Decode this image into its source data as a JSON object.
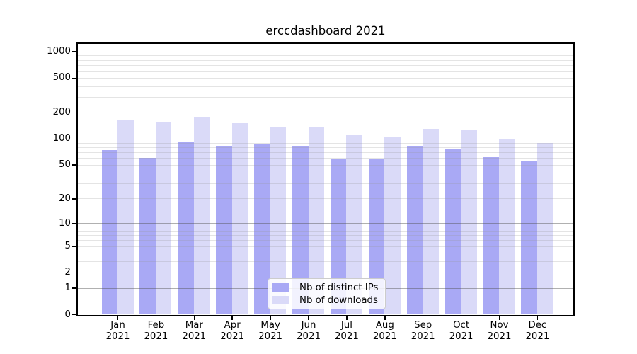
{
  "chart_data": {
    "type": "bar",
    "title": "erccdashboard 2021",
    "categories": [
      "Jan 2021",
      "Feb 2021",
      "Mar 2021",
      "Apr 2021",
      "May 2021",
      "Jun 2021",
      "Jul 2021",
      "Aug 2021",
      "Sep 2021",
      "Oct 2021",
      "Nov 2021",
      "Dec 2021"
    ],
    "series": [
      {
        "name": "Nb of distinct IPs",
        "color": "#a9a9f5",
        "values": [
          75,
          61,
          94,
          84,
          88,
          83,
          60,
          60,
          84,
          76,
          62,
          55
        ]
      },
      {
        "name": "Nb of downloads",
        "color": "#dadaf8",
        "values": [
          165,
          158,
          181,
          153,
          136,
          137,
          110,
          106,
          130,
          127,
          100,
          90
        ]
      }
    ],
    "xlabel": "",
    "ylabel": "",
    "yscale": "log1p",
    "ylim": [
      0,
      1230
    ],
    "y_ticks": [
      0,
      1,
      2,
      5,
      10,
      20,
      50,
      100,
      200,
      500,
      1000
    ],
    "y_tick_labels": [
      "0",
      "1",
      "2",
      "5",
      "10",
      "20",
      "50",
      "100",
      "200",
      "500",
      "1000"
    ],
    "grid": "major-and-minor-horizontal",
    "legend_position": "lower-center",
    "colors": {
      "background": "#ffffff",
      "spine": "#000000",
      "major_grid": "#b0b0b0",
      "minor_grid": "#e6e6e6",
      "text": "#000000",
      "legend_border": "#cccccc"
    }
  }
}
